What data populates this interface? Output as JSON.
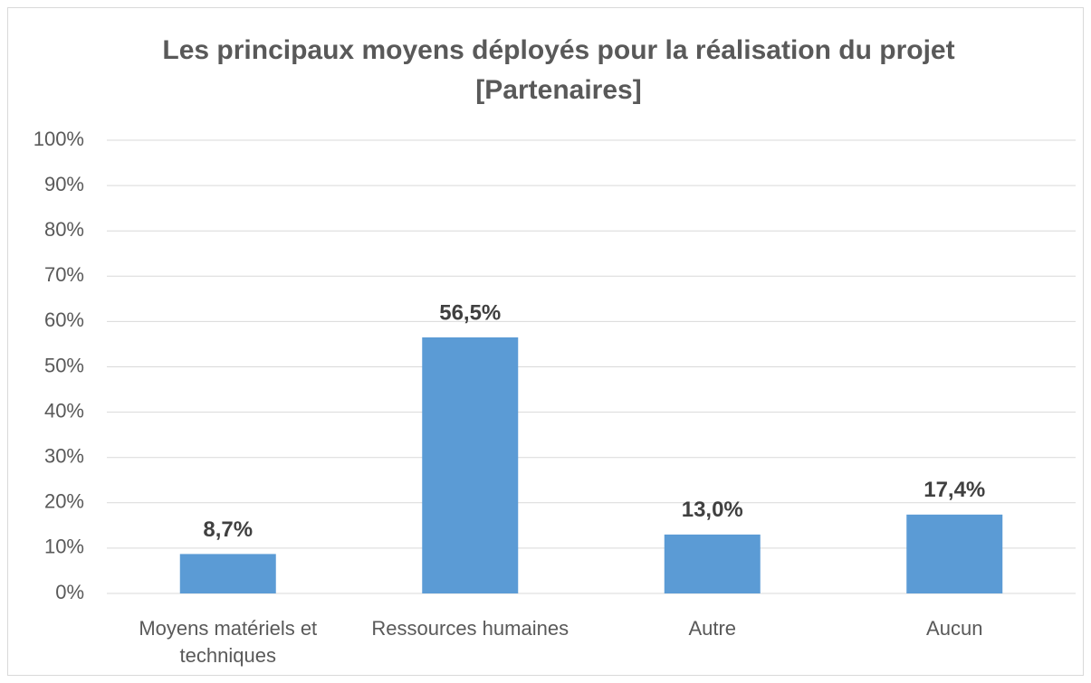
{
  "chart_data": {
    "type": "bar",
    "title": [
      "Les principaux moyens déployés pour la réalisation du projet",
      "[Partenaires]"
    ],
    "categories": [
      "Moyens matériels et techniques",
      "Ressources humaines",
      "Autre",
      "Aucun"
    ],
    "values": [
      8.7,
      56.5,
      13.0,
      17.4
    ],
    "value_labels": [
      "8,7%",
      "56,5%",
      "13,0%",
      "17,4%"
    ],
    "color": "#5b9bd5",
    "ylim": [
      0,
      100
    ],
    "yticks": [
      {
        "value": 0,
        "label": "0%"
      },
      {
        "value": 10,
        "label": "10%"
      },
      {
        "value": 20,
        "label": "20%"
      },
      {
        "value": 30,
        "label": "30%"
      },
      {
        "value": 40,
        "label": "40%"
      },
      {
        "value": 50,
        "label": "50%"
      },
      {
        "value": 60,
        "label": "60%"
      },
      {
        "value": 70,
        "label": "70%"
      },
      {
        "value": 80,
        "label": "80%"
      },
      {
        "value": 90,
        "label": "90%"
      },
      {
        "value": 100,
        "label": "100%"
      }
    ],
    "grid": true
  }
}
